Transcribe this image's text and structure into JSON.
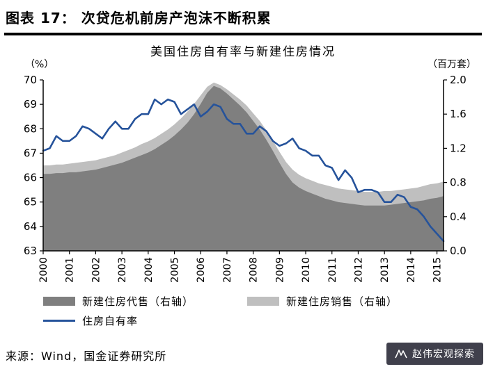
{
  "header": {
    "title": "图表 17：  次贷危机前房产泡沫不断积累"
  },
  "footer": {
    "source": "来源：Wind，国金证券研究所"
  },
  "watermark": {
    "text": "赵伟宏观探索"
  },
  "chart_data": {
    "type": "area",
    "subtype": "combo-area-line",
    "title": "美国住房自有率与新建住房情况",
    "left_axis": {
      "unit": "（%）",
      "min": 63,
      "max": 70,
      "ticks": [
        70,
        69,
        68,
        67,
        66,
        65,
        64,
        63
      ]
    },
    "right_axis": {
      "unit": "（百万套）",
      "min": 0.0,
      "max": 2.0,
      "ticks": [
        "2.0",
        "1.6",
        "1.2",
        "0.8",
        "0.4",
        "0.0"
      ]
    },
    "x_axis": {
      "years": [
        "2000",
        "2001",
        "2002",
        "2003",
        "2004",
        "2005",
        "2006",
        "2007",
        "2008",
        "2009",
        "2010",
        "2011",
        "2012",
        "2013",
        "2014",
        "2015"
      ],
      "points_per_year": 4,
      "frequency": "quarterly"
    },
    "grid": false,
    "legend_position": "bottom",
    "series": [
      {
        "name": "新建住房销售（右轴）",
        "type": "area",
        "axis": "right",
        "color": "#BFBFBF",
        "values": [
          1.0,
          1.0,
          1.01,
          1.01,
          1.02,
          1.03,
          1.04,
          1.05,
          1.06,
          1.08,
          1.1,
          1.12,
          1.15,
          1.18,
          1.21,
          1.25,
          1.28,
          1.32,
          1.37,
          1.42,
          1.48,
          1.55,
          1.63,
          1.72,
          1.82,
          1.92,
          1.97,
          1.94,
          1.89,
          1.83,
          1.77,
          1.7,
          1.61,
          1.52,
          1.41,
          1.29,
          1.16,
          1.04,
          0.95,
          0.89,
          0.85,
          0.82,
          0.79,
          0.77,
          0.75,
          0.73,
          0.72,
          0.71,
          0.7,
          0.69,
          0.69,
          0.69,
          0.7,
          0.7,
          0.71,
          0.72,
          0.73,
          0.74,
          0.76,
          0.78,
          0.79,
          0.81
        ]
      },
      {
        "name": "新建住房代售（右轴）",
        "type": "area",
        "axis": "right",
        "color": "#7F7F7F",
        "values": [
          0.9,
          0.9,
          0.91,
          0.91,
          0.92,
          0.92,
          0.93,
          0.94,
          0.95,
          0.97,
          0.99,
          1.01,
          1.03,
          1.06,
          1.09,
          1.12,
          1.15,
          1.19,
          1.24,
          1.29,
          1.35,
          1.42,
          1.5,
          1.6,
          1.72,
          1.85,
          1.93,
          1.9,
          1.84,
          1.77,
          1.7,
          1.62,
          1.52,
          1.42,
          1.3,
          1.17,
          1.03,
          0.9,
          0.8,
          0.74,
          0.7,
          0.67,
          0.64,
          0.61,
          0.59,
          0.57,
          0.56,
          0.55,
          0.54,
          0.53,
          0.53,
          0.53,
          0.53,
          0.54,
          0.55,
          0.56,
          0.57,
          0.58,
          0.59,
          0.61,
          0.62,
          0.64
        ]
      },
      {
        "name": "住房自有率",
        "type": "line",
        "axis": "left",
        "color": "#26539B",
        "values": [
          67.1,
          67.2,
          67.7,
          67.5,
          67.5,
          67.7,
          68.1,
          68.0,
          67.8,
          67.6,
          68.0,
          68.3,
          68.0,
          68.0,
          68.4,
          68.6,
          68.6,
          69.2,
          69.0,
          69.2,
          69.1,
          68.6,
          68.8,
          69.0,
          68.5,
          68.7,
          69.0,
          68.9,
          68.4,
          68.2,
          68.2,
          67.8,
          67.8,
          68.1,
          67.9,
          67.5,
          67.3,
          67.4,
          67.6,
          67.2,
          67.1,
          66.9,
          66.9,
          66.5,
          66.4,
          65.9,
          66.3,
          66.0,
          65.4,
          65.5,
          65.5,
          65.4,
          65.0,
          65.0,
          65.3,
          65.2,
          64.8,
          64.7,
          64.4,
          64.0,
          63.7,
          63.4
        ]
      }
    ],
    "legend": [
      {
        "label": "新建住房代售（右轴）",
        "swatch": "area",
        "color": "#7F7F7F"
      },
      {
        "label": "新建住房销售（右轴）",
        "swatch": "area",
        "color": "#BFBFBF"
      },
      {
        "label": "住房自有率",
        "swatch": "line",
        "color": "#26539B"
      }
    ]
  }
}
